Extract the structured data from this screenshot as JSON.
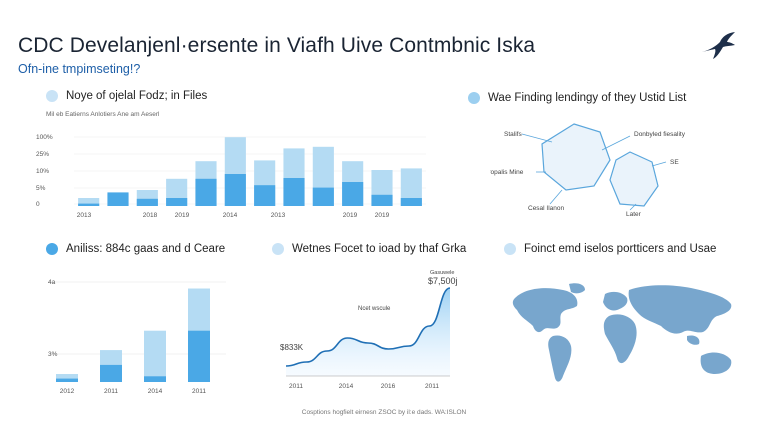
{
  "header": {
    "title": "CDC Develanjenl·ersente in Viafh Uive Contmbnic Iska",
    "subtitle": "Ofn-ine tmpimseting!?"
  },
  "colors": {
    "dark": "#4aa8e6",
    "light": "#b4dbf3",
    "accent": "#1f6fb5"
  },
  "panels": {
    "p1": {
      "title": "Noye of ojelal Fodz; in Files",
      "subtitle": "Mil eb Eatierns Anlotiers Ane am Aeserl",
      "icon": "circle-icon"
    },
    "p2": {
      "title": "Wae Finding lendingy of they Ustid List",
      "icon": "circle-icon"
    },
    "p3": {
      "title": "Aniliss: 884c gaas and d Ceare",
      "icon": "circle-icon"
    },
    "p4": {
      "title": "Wetnes Focet to ioad by thaf Grka",
      "icon": "circle-icon"
    },
    "p5": {
      "title": "Foinct emd iselos portticers and Usae",
      "icon": "circle-icon"
    }
  },
  "footer": "Cosptions hogfielt eirnesn ZSOC by il:e dads. WA:ISLON",
  "chart_data": [
    {
      "type": "bar",
      "ylim": [
        0,
        100
      ],
      "yticks": [
        "100%",
        "25%",
        "10%",
        "5%",
        "0"
      ],
      "xticks": [
        "2013",
        "2018",
        "2019",
        "2014",
        "2013",
        "2019",
        "2019"
      ],
      "series": [
        {
          "values": [
            3,
            17,
            9,
            10,
            34,
            40,
            26,
            35,
            23,
            30,
            14,
            10
          ]
        },
        {
          "values": [
            10,
            15,
            20,
            34,
            56,
            86,
            57,
            72,
            74,
            56,
            45,
            47
          ]
        }
      ]
    },
    {
      "type": "diagram",
      "nodes": [
        "Stalifs",
        "Donbyled fiesality",
        "Propalis Mine",
        "SE",
        "Cesal Ilanon",
        "Later"
      ]
    },
    {
      "type": "bar",
      "yticks": [
        "4a",
        "3%"
      ],
      "xticks": [
        "2012",
        "2011",
        "2014",
        "2011"
      ],
      "series": [
        {
          "values": [
            3,
            15,
            5,
            45
          ]
        },
        {
          "values": [
            7,
            28,
            45,
            82
          ]
        }
      ]
    },
    {
      "type": "area",
      "xticks": [
        "2011",
        "2014",
        "2016",
        "2011"
      ],
      "labels": {
        "start": "$833K",
        "mid": "Ncet wscule",
        "end_top": "Gasuwele",
        "end": "$7,500j"
      },
      "values": [
        10,
        14,
        25,
        38,
        33,
        27,
        30,
        50,
        88
      ]
    },
    {
      "type": "map"
    }
  ]
}
